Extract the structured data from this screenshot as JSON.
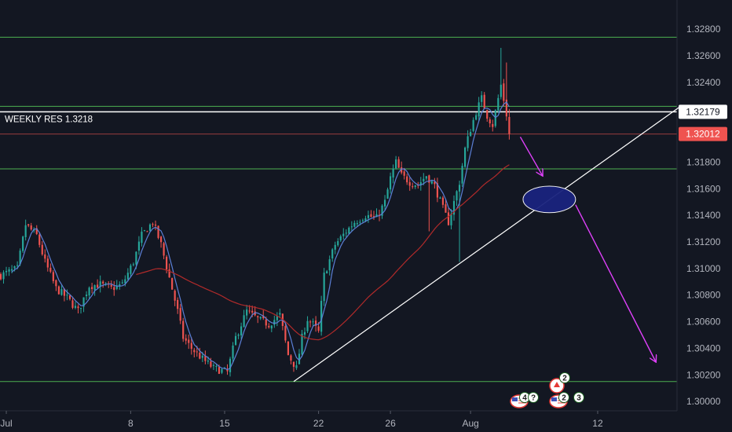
{
  "chart_data": {
    "type": "candlestick",
    "instrument_price_tags": {
      "weekly_res": "1.32179",
      "last_price": "1.32012"
    },
    "weekly_res_label": "WEEKLY RES 1.3218",
    "y_axis": {
      "ylim": [
        1.2993,
        1.3302
      ],
      "ticks": [
        "1.32800",
        "1.32600",
        "1.32400",
        "1.32200",
        "1.32000",
        "1.31800",
        "1.31600",
        "1.31400",
        "1.31200",
        "1.31000",
        "1.30800",
        "1.30600",
        "1.30400",
        "1.30200",
        "1.30000"
      ]
    },
    "x_axis": {
      "tick_labels": [
        "Jul",
        "8",
        "15",
        "22",
        "26",
        "Aug",
        "12"
      ],
      "tick_bars": [
        2,
        47,
        81,
        115,
        141,
        170,
        216
      ],
      "bars_visible": [
        0,
        245
      ]
    },
    "horizontal_levels": {
      "green": [
        1.3274,
        1.3222,
        1.3175,
        1.3015
      ],
      "white": 1.32179,
      "last_price_line": 1.32012
    },
    "trendline": {
      "from": {
        "bar": 106,
        "price": 1.3015
      },
      "to": {
        "bar": 246,
        "price": 1.3222
      }
    },
    "projection_arrows": [
      {
        "from": {
          "bar": 188,
          "price": 1.3199
        },
        "to": {
          "bar": 196,
          "price": 1.317
        }
      },
      {
        "from": {
          "bar": 208,
          "price": 1.3148
        },
        "to": {
          "bar": 237,
          "price": 1.303
        }
      }
    ],
    "ellipse": {
      "bar": 198.5,
      "price": 1.3152,
      "rx_bars": 9.5,
      "ry_price": 0.001
    },
    "candles": [],
    "colors": {
      "background": "#131722",
      "up": "#26a69a",
      "down": "#ef5350",
      "green_level": "#4caf50",
      "white_level": "#ffffff",
      "last_price": "#ef5350",
      "ma_fast": "#5b7fd6",
      "ma_slow": "#b02a2a",
      "arrow": "#e040fb",
      "ellipse_fill": "#1a237e",
      "ellipse_stroke": "#ffffff"
    },
    "events": [
      {
        "flag": "CA",
        "count": "2"
      },
      {
        "flag": "US",
        "count": "4"
      },
      {
        "flag": "",
        "count": "?"
      },
      {
        "flag": "US",
        "count": "2"
      },
      {
        "flag": "",
        "count": "3"
      }
    ]
  }
}
